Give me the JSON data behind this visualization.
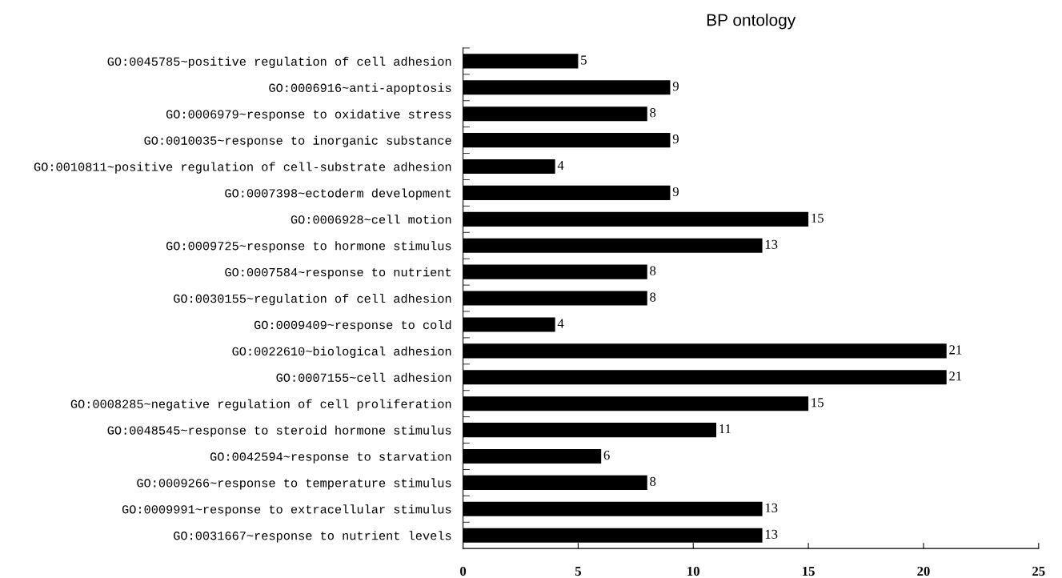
{
  "chart_data": {
    "type": "bar",
    "orientation": "horizontal",
    "title": "BP ontology",
    "categories": [
      "GO:0045785~positive regulation of cell adhesion",
      "GO:0006916~anti-apoptosis",
      "GO:0006979~response to oxidative stress",
      "GO:0010035~response to inorganic substance",
      "GO:0010811~positive regulation of cell-substrate adhesion",
      "GO:0007398~ectoderm development",
      "GO:0006928~cell motion",
      "GO:0009725~response to hormone stimulus",
      "GO:0007584~response to nutrient",
      "GO:0030155~regulation of cell adhesion",
      "GO:0009409~response to cold",
      "GO:0022610~biological adhesion",
      "GO:0007155~cell adhesion",
      "GO:0008285~negative regulation of cell proliferation",
      "GO:0048545~response to steroid hormone stimulus",
      "GO:0042594~response to starvation",
      "GO:0009266~response to temperature stimulus",
      "GO:0009991~response to extracellular stimulus",
      "GO:0031667~response to nutrient levels"
    ],
    "values": [
      5,
      9,
      8,
      9,
      4,
      9,
      15,
      13,
      8,
      8,
      4,
      21,
      21,
      15,
      11,
      6,
      8,
      13,
      13
    ],
    "color": "#000000",
    "xlim": [
      0,
      25
    ],
    "xticks": [
      0,
      5,
      10,
      15,
      20,
      25
    ],
    "data_labels": true,
    "grid": false,
    "legend": false
  }
}
